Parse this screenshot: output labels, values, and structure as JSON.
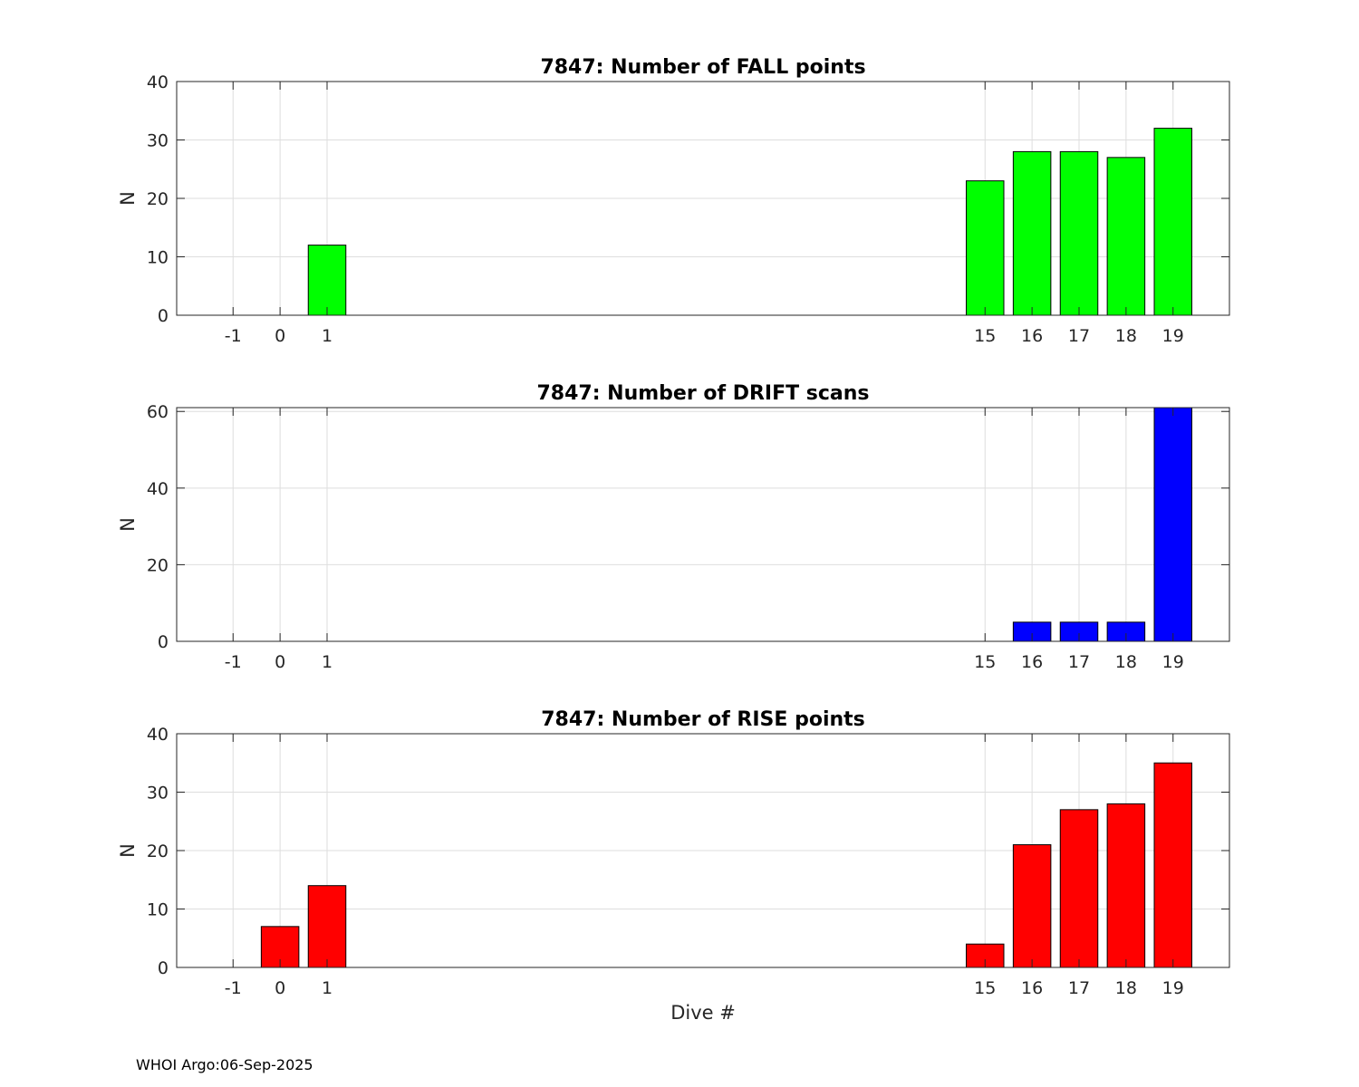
{
  "chart_data": [
    {
      "type": "bar",
      "title": "7847: Number of FALL points",
      "xlabel": "",
      "ylabel": "N",
      "categories": [
        -1,
        0,
        1,
        15,
        16,
        17,
        18,
        19
      ],
      "values": [
        0,
        0,
        12,
        23,
        28,
        28,
        27,
        32
      ],
      "ylim": [
        0,
        40
      ],
      "yticks": [
        0,
        10,
        20,
        30,
        40
      ],
      "xticks": [
        -1,
        0,
        1,
        15,
        16,
        17,
        18,
        19
      ],
      "color": "#00ff00",
      "grid": true
    },
    {
      "type": "bar",
      "title": "7847: Number of DRIFT scans",
      "xlabel": "",
      "ylabel": "N",
      "categories": [
        -1,
        0,
        1,
        15,
        16,
        17,
        18,
        19
      ],
      "values": [
        0,
        0,
        0,
        0,
        5,
        5,
        5,
        61
      ],
      "ylim": [
        0,
        61
      ],
      "yticks": [
        0,
        20,
        40,
        60
      ],
      "xticks": [
        -1,
        0,
        1,
        15,
        16,
        17,
        18,
        19
      ],
      "color": "#0000ff",
      "grid": true
    },
    {
      "type": "bar",
      "title": "7847: Number of RISE points",
      "xlabel": "Dive #",
      "ylabel": "N",
      "categories": [
        -1,
        0,
        1,
        15,
        16,
        17,
        18,
        19
      ],
      "values": [
        0,
        7,
        14,
        4,
        21,
        27,
        28,
        35
      ],
      "ylim": [
        0,
        40
      ],
      "yticks": [
        0,
        10,
        20,
        30,
        40
      ],
      "xticks": [
        -1,
        0,
        1,
        15,
        16,
        17,
        18,
        19
      ],
      "color": "#ff0000",
      "grid": true
    }
  ],
  "footer": "WHOI Argo:06-Sep-2025"
}
